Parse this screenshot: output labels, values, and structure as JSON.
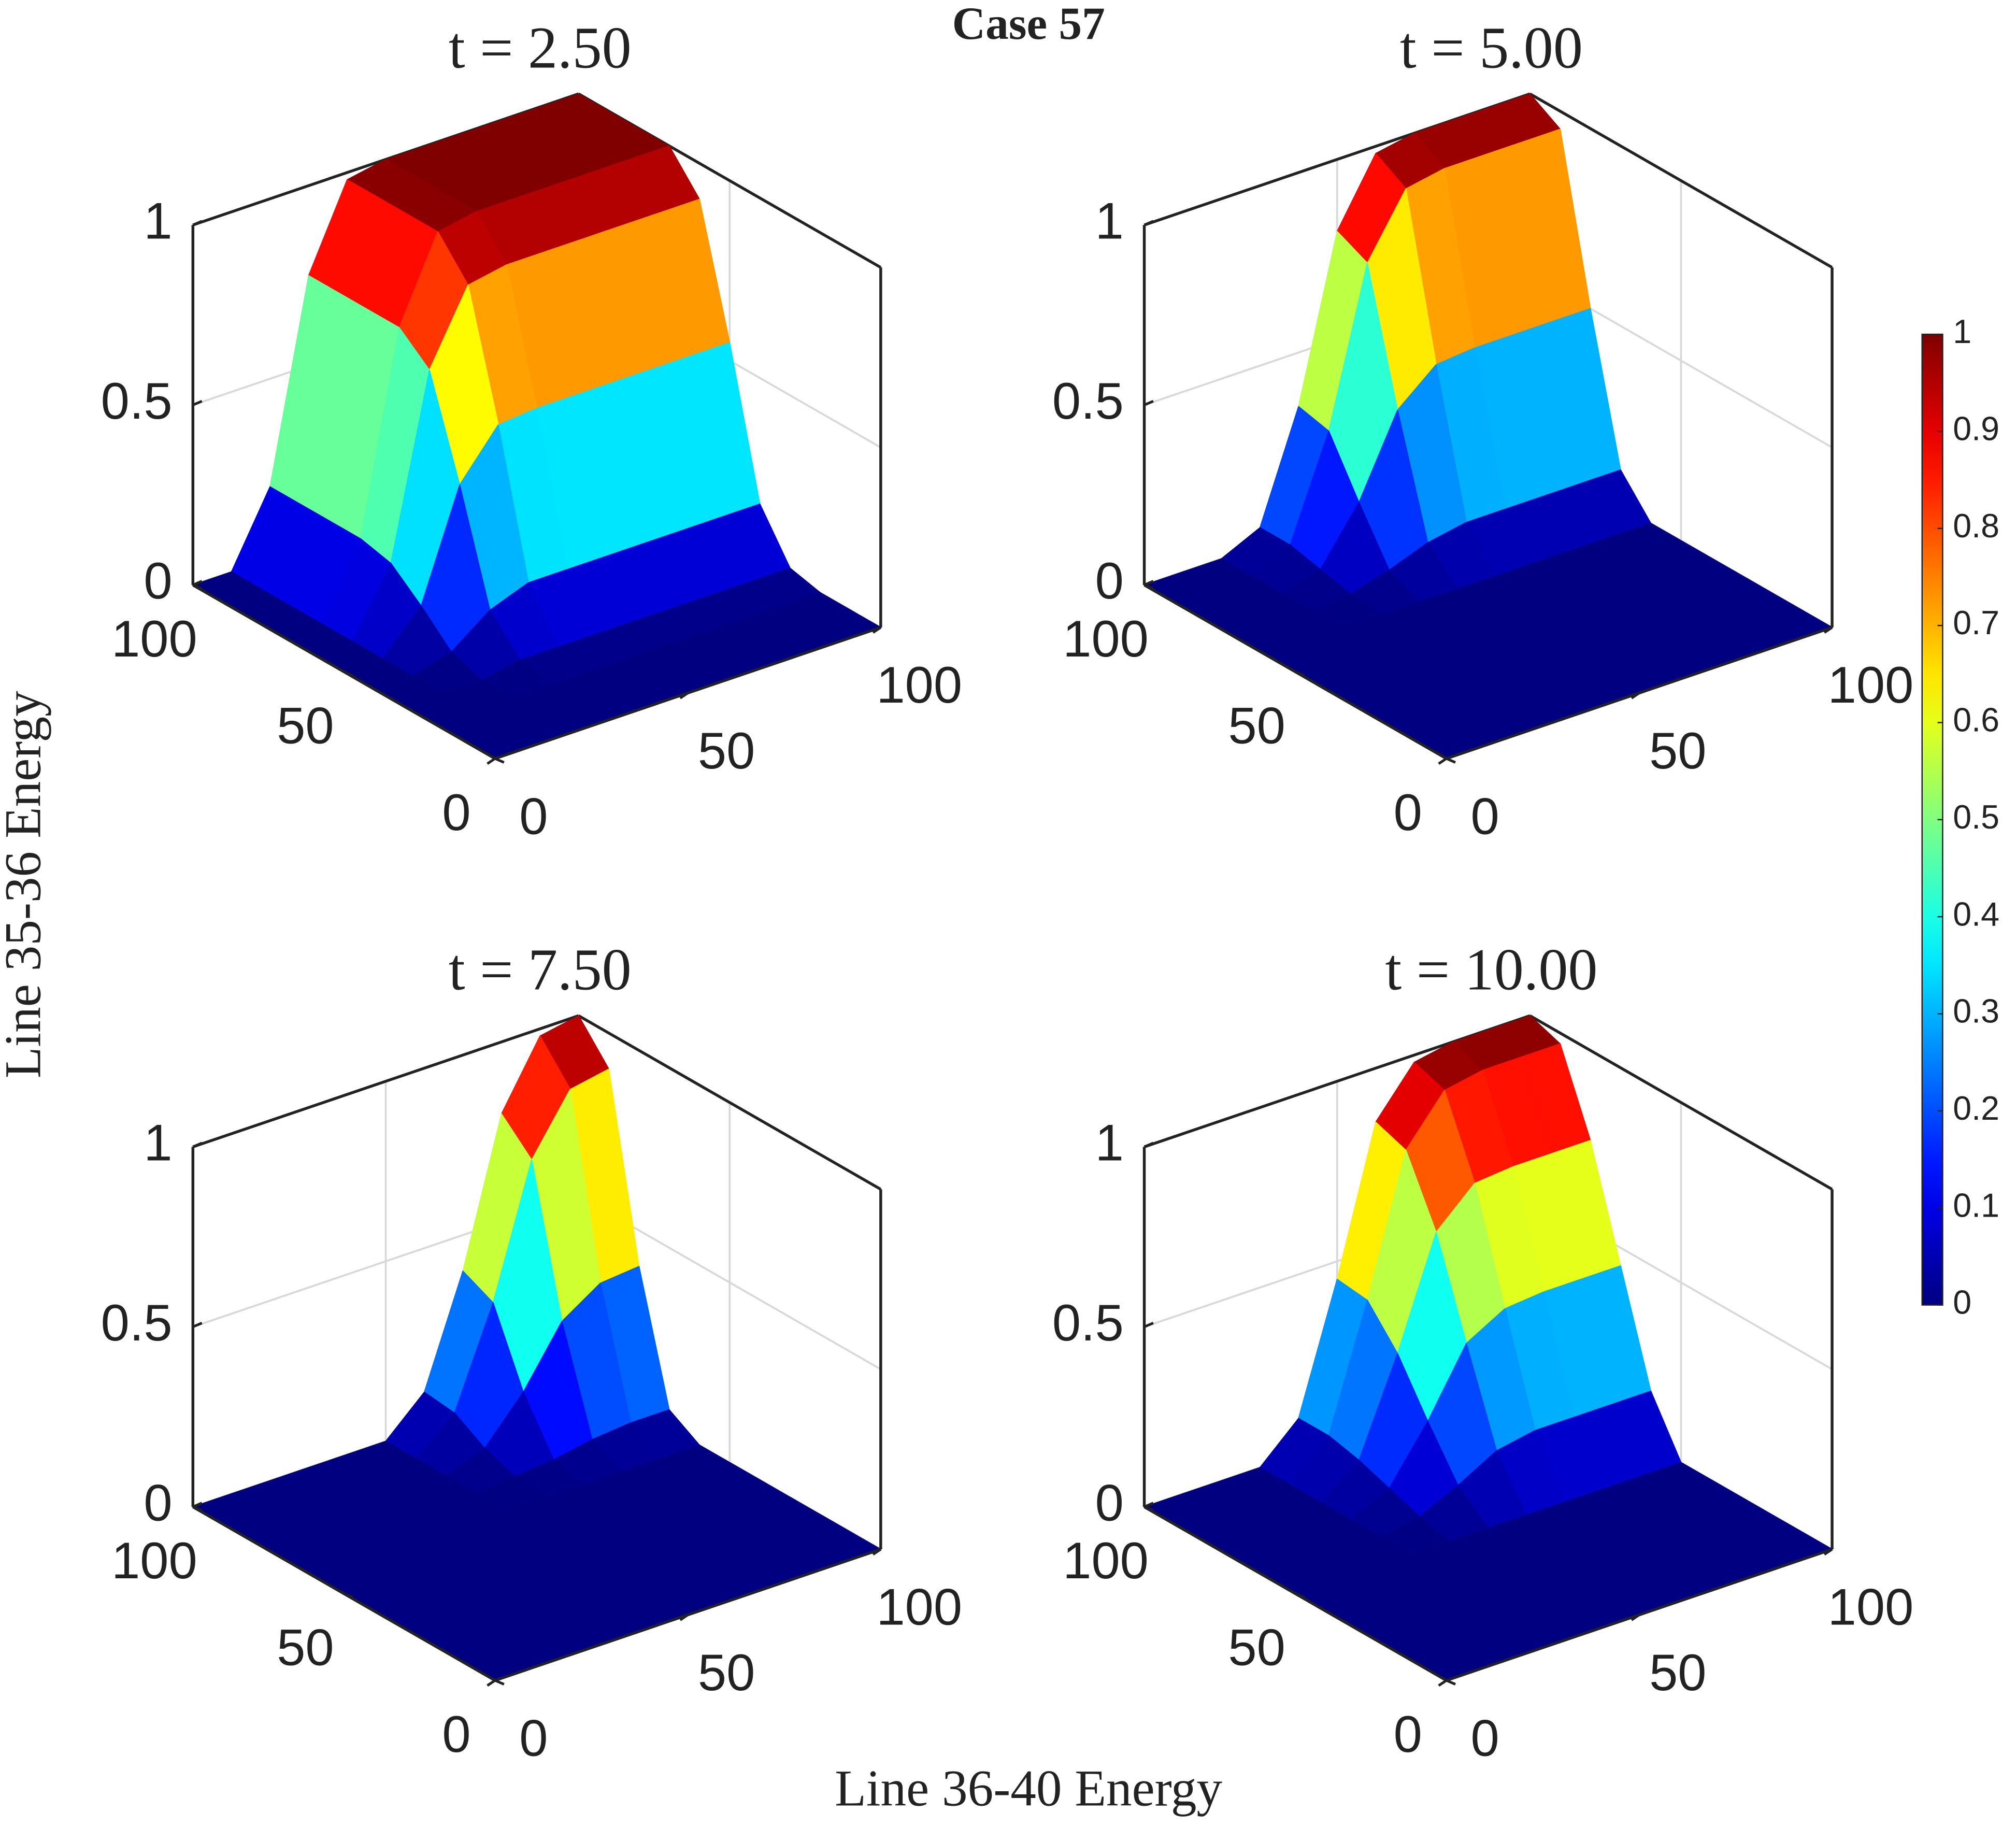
{
  "figure": {
    "title": "Case 57",
    "xlabel": "Line 36-40 Energy",
    "ylabel": "Line 35-36 Energy"
  },
  "colorbar": {
    "colormap": "jet",
    "clim": [
      0,
      1
    ],
    "ticks": [
      0,
      0.1,
      0.2,
      0.3,
      0.4,
      0.5,
      0.6,
      0.7,
      0.8,
      0.9,
      1
    ]
  },
  "chart_data": [
    {
      "type": "surface",
      "title": "t = 2.50",
      "x": [
        0,
        10,
        20,
        30,
        40,
        50,
        60,
        70,
        80,
        90,
        100
      ],
      "y": [
        0,
        10,
        20,
        30,
        40,
        50,
        60,
        70,
        80,
        90,
        100
      ],
      "z": [
        [
          0,
          0,
          0,
          0,
          0,
          0,
          0,
          0,
          0,
          0,
          0
        ],
        [
          0,
          0,
          0,
          0,
          0,
          0,
          0,
          0,
          0,
          0,
          0
        ],
        [
          0,
          0,
          0,
          0,
          0,
          0,
          0,
          0,
          0,
          0,
          0
        ],
        [
          0,
          0,
          0,
          0.02,
          0.02,
          0.02,
          0.02,
          0.02,
          0.02,
          0.02,
          0.02
        ],
        [
          0,
          0,
          0.03,
          0.11,
          0.15,
          0.15,
          0.15,
          0.15,
          0.15,
          0.15,
          0.15
        ],
        [
          0,
          0,
          0.11,
          0.41,
          0.54,
          0.55,
          0.55,
          0.55,
          0.55,
          0.55,
          0.55
        ],
        [
          0,
          0,
          0.18,
          0.68,
          0.88,
          0.9,
          0.9,
          0.9,
          0.9,
          0.9,
          0.9
        ],
        [
          0,
          0,
          0.2,
          0.75,
          0.98,
          1,
          1,
          1,
          1,
          1,
          1
        ],
        [
          0,
          0,
          0.2,
          0.75,
          0.98,
          1,
          1,
          1,
          1,
          1,
          1
        ],
        [
          0,
          0,
          0.2,
          0.75,
          0.98,
          1,
          1,
          1,
          1,
          1,
          1
        ],
        [
          0,
          0,
          0.2,
          0.75,
          0.98,
          1,
          1,
          1,
          1,
          1,
          1
        ]
      ],
      "xlim": [
        0,
        100
      ],
      "ylim": [
        0,
        100
      ],
      "zlim": [
        0,
        1
      ],
      "xticks": [
        0,
        50,
        100
      ],
      "yticks": [
        0,
        50,
        100
      ],
      "zticks": [
        0,
        0.5,
        1
      ],
      "grid": true
    },
    {
      "type": "surface",
      "title": "t = 5.00",
      "x": [
        0,
        10,
        20,
        30,
        40,
        50,
        60,
        70,
        80,
        90,
        100
      ],
      "y": [
        0,
        10,
        20,
        30,
        40,
        50,
        60,
        70,
        80,
        90,
        100
      ],
      "z": [
        [
          0,
          0,
          0,
          0,
          0,
          0,
          0,
          0,
          0,
          0,
          0
        ],
        [
          0,
          0,
          0,
          0,
          0,
          0,
          0,
          0,
          0,
          0,
          0
        ],
        [
          0,
          0,
          0,
          0,
          0,
          0,
          0,
          0,
          0,
          0,
          0
        ],
        [
          0,
          0,
          0,
          0,
          0,
          0,
          0,
          0,
          0,
          0,
          0
        ],
        [
          0,
          0,
          0,
          0,
          0,
          0,
          0,
          0,
          0,
          0,
          0
        ],
        [
          0,
          0,
          0,
          0,
          0,
          0,
          0,
          0,
          0,
          0,
          0
        ],
        [
          0,
          0,
          0,
          0,
          0,
          0,
          0,
          0,
          0,
          0,
          0
        ],
        [
          0,
          0,
          0,
          0.01,
          0.04,
          0.08,
          0.1,
          0.1,
          0.1,
          0.1,
          0.1
        ],
        [
          0,
          0,
          0,
          0.03,
          0.18,
          0.4,
          0.49,
          0.5,
          0.5,
          0.5,
          0.5
        ],
        [
          0,
          0,
          0,
          0.05,
          0.33,
          0.76,
          0.93,
          0.95,
          0.95,
          0.95,
          0.95
        ],
        [
          0,
          0,
          0,
          0.05,
          0.35,
          0.8,
          0.98,
          1,
          1,
          1,
          1
        ]
      ],
      "xlim": [
        0,
        100
      ],
      "ylim": [
        0,
        100
      ],
      "zlim": [
        0,
        1
      ],
      "xticks": [
        0,
        50,
        100
      ],
      "yticks": [
        0,
        50,
        100
      ],
      "zticks": [
        0,
        0.5,
        1
      ],
      "grid": true
    },
    {
      "type": "surface",
      "title": "t = 7.50",
      "x": [
        0,
        10,
        20,
        30,
        40,
        50,
        60,
        70,
        80,
        90,
        100
      ],
      "y": [
        0,
        10,
        20,
        30,
        40,
        50,
        60,
        70,
        80,
        90,
        100
      ],
      "z": [
        [
          0,
          0,
          0,
          0,
          0,
          0,
          0,
          0,
          0,
          0,
          0
        ],
        [
          0,
          0,
          0,
          0,
          0,
          0,
          0,
          0,
          0,
          0,
          0
        ],
        [
          0,
          0,
          0,
          0,
          0,
          0,
          0,
          0,
          0,
          0,
          0
        ],
        [
          0,
          0,
          0,
          0,
          0,
          0,
          0,
          0,
          0,
          0,
          0
        ],
        [
          0,
          0,
          0,
          0,
          0,
          0,
          0,
          0,
          0,
          0,
          0
        ],
        [
          0,
          0,
          0,
          0,
          0,
          0,
          0,
          0,
          0,
          0,
          0
        ],
        [
          0,
          0,
          0,
          0,
          0,
          0,
          0,
          0,
          0,
          0,
          0
        ],
        [
          0,
          0,
          0,
          0,
          0,
          0,
          0.01,
          0.02,
          0.04,
          0.05,
          0.05
        ],
        [
          0,
          0,
          0,
          0,
          0,
          0,
          0.04,
          0.16,
          0.32,
          0.39,
          0.4
        ],
        [
          0,
          0,
          0,
          0,
          0,
          0,
          0.09,
          0.36,
          0.72,
          0.88,
          0.9
        ],
        [
          0,
          0,
          0,
          0,
          0,
          0,
          0.1,
          0.4,
          0.8,
          0.98,
          1
        ]
      ],
      "xlim": [
        0,
        100
      ],
      "ylim": [
        0,
        100
      ],
      "zlim": [
        0,
        1
      ],
      "xticks": [
        0,
        50,
        100
      ],
      "yticks": [
        0,
        50,
        100
      ],
      "zticks": [
        0,
        0.5,
        1
      ],
      "grid": true
    },
    {
      "type": "surface",
      "title": "t = 10.00",
      "x": [
        0,
        10,
        20,
        30,
        40,
        50,
        60,
        70,
        80,
        90,
        100
      ],
      "y": [
        0,
        10,
        20,
        30,
        40,
        50,
        60,
        70,
        80,
        90,
        100
      ],
      "z": [
        [
          0,
          0,
          0,
          0,
          0,
          0,
          0,
          0,
          0,
          0,
          0
        ],
        [
          0,
          0,
          0,
          0,
          0,
          0,
          0,
          0,
          0,
          0,
          0
        ],
        [
          0,
          0,
          0,
          0,
          0,
          0,
          0,
          0,
          0,
          0,
          0
        ],
        [
          0,
          0,
          0,
          0,
          0,
          0,
          0,
          0,
          0,
          0,
          0
        ],
        [
          0,
          0,
          0,
          0,
          0,
          0,
          0,
          0,
          0,
          0,
          0
        ],
        [
          0,
          0,
          0,
          0,
          0,
          0,
          0,
          0,
          0,
          0,
          0
        ],
        [
          0,
          0,
          0,
          0,
          0.02,
          0.07,
          0.13,
          0.15,
          0.15,
          0.15,
          0.15
        ],
        [
          0,
          0,
          0,
          0,
          0.05,
          0.2,
          0.38,
          0.44,
          0.45,
          0.45,
          0.45
        ],
        [
          0,
          0,
          0,
          0,
          0.08,
          0.34,
          0.64,
          0.74,
          0.75,
          0.75,
          0.75
        ],
        [
          0,
          0,
          0,
          0,
          0.1,
          0.44,
          0.82,
          0.95,
          0.97,
          0.97,
          0.97
        ],
        [
          0,
          0,
          0,
          0,
          0.1,
          0.45,
          0.85,
          0.98,
          1,
          1,
          1
        ]
      ],
      "xlim": [
        0,
        100
      ],
      "ylim": [
        0,
        100
      ],
      "zlim": [
        0,
        1
      ],
      "xticks": [
        0,
        50,
        100
      ],
      "yticks": [
        0,
        50,
        100
      ],
      "zticks": [
        0,
        0.5,
        1
      ],
      "grid": true
    }
  ]
}
